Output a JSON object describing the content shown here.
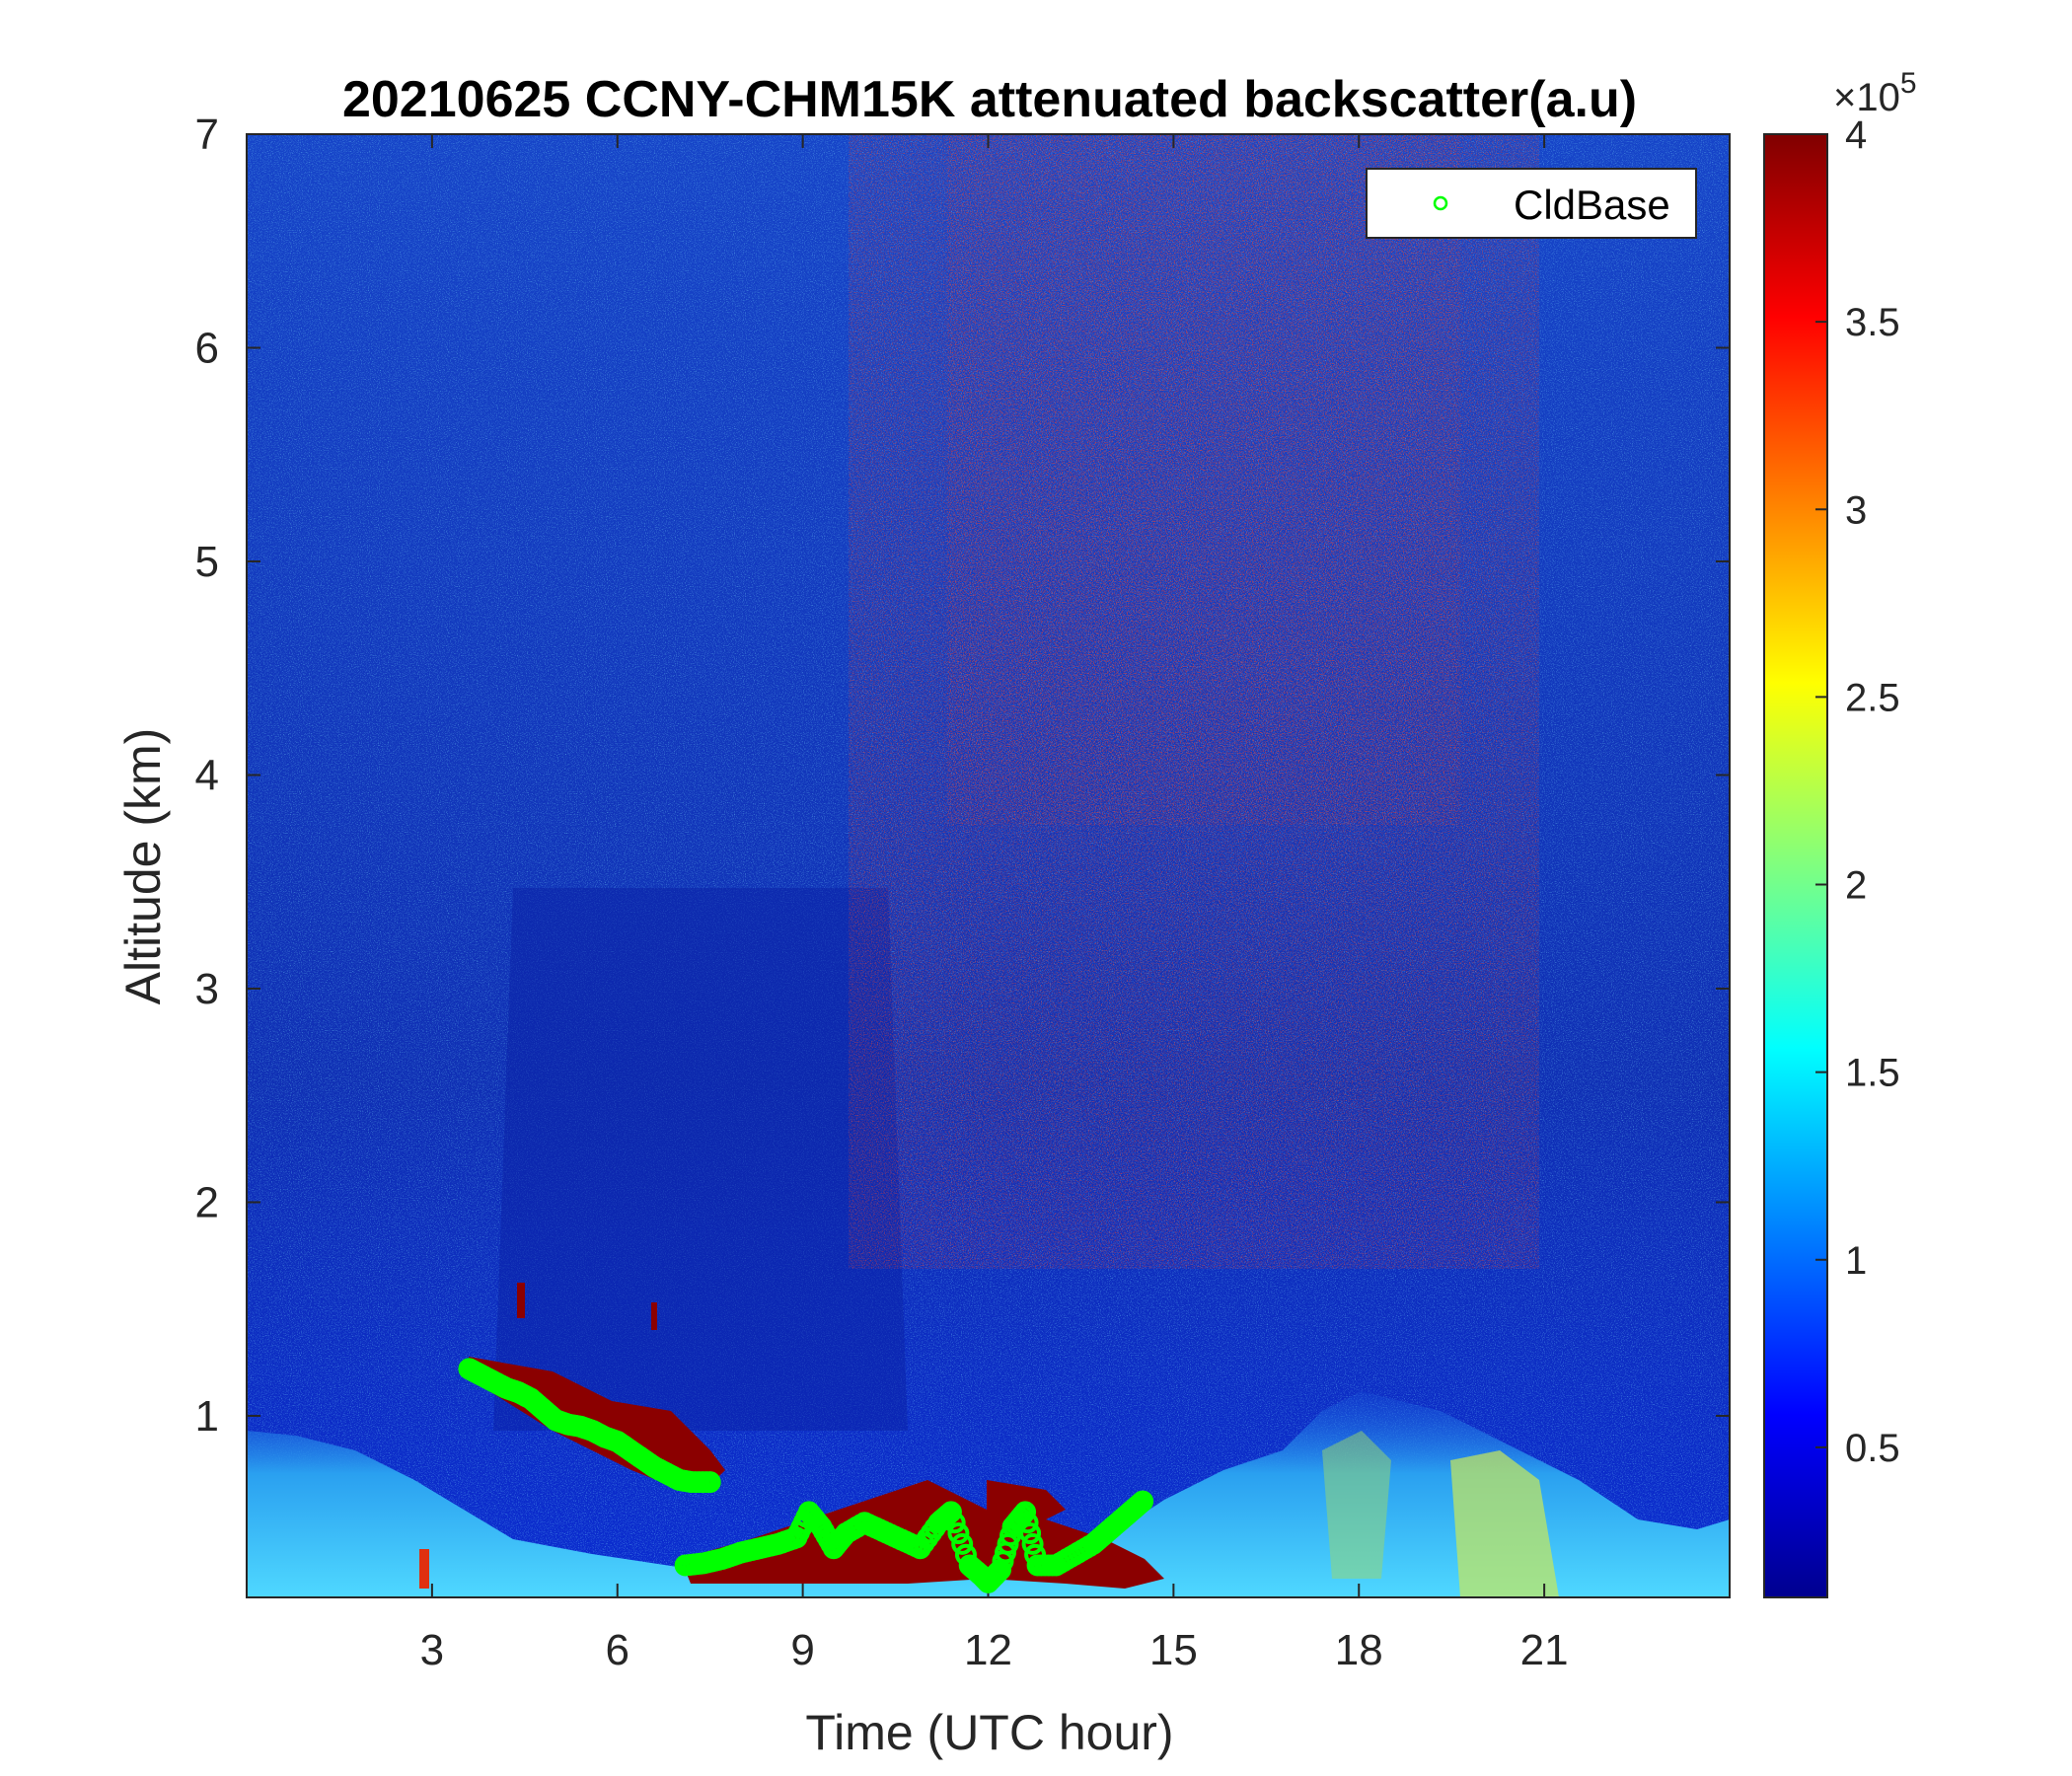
{
  "chart_data": {
    "type": "heatmap",
    "title": "20210625 CCNY-CHM15K attenuated backscatter(a.u)",
    "xlabel": "Time (UTC hour)",
    "ylabel": "Altitude (km)",
    "xlim": [
      0,
      24
    ],
    "ylim": [
      0.15,
      7
    ],
    "xticks": [
      3,
      6,
      9,
      12,
      15,
      18,
      21
    ],
    "yticks": [
      1,
      2,
      3,
      4,
      5,
      6,
      7
    ],
    "colorbar": {
      "colormap": "jet",
      "clim": [
        0.1,
        4
      ],
      "ticks": [
        0.5,
        1,
        1.5,
        2,
        2.5,
        3,
        3.5,
        4
      ],
      "multiplier_base": "×10",
      "multiplier_exponent": "5"
    },
    "legend": {
      "location": "top-right",
      "entries": [
        "CldBase"
      ]
    },
    "colors": {
      "cloud_base_marker": "#00ff00"
    },
    "cloud_base_series": {
      "name": "CldBase",
      "marker": "circle",
      "segments": [
        {
          "x": [
            3.6,
            3.8,
            4.0,
            4.2,
            4.4,
            4.6,
            4.8,
            5.0,
            5.2,
            5.4,
            5.6,
            5.8,
            6.0,
            6.2,
            6.4,
            6.6,
            6.8,
            7.0,
            7.2,
            7.5
          ],
          "y": [
            1.22,
            1.19,
            1.16,
            1.13,
            1.11,
            1.08,
            1.03,
            0.98,
            0.96,
            0.95,
            0.93,
            0.9,
            0.88,
            0.84,
            0.8,
            0.76,
            0.73,
            0.7,
            0.69,
            0.69
          ]
        },
        {
          "x": [
            7.1,
            7.4,
            7.7,
            8.0,
            8.3,
            8.6,
            8.9,
            9.1,
            9.3,
            9.5,
            9.7,
            10.0,
            10.3,
            10.6,
            10.9,
            11.2,
            11.4,
            11.7,
            11.9,
            12.0,
            12.2,
            12.4,
            12.6,
            12.8,
            13.1,
            13.4,
            13.7,
            13.9,
            14.1,
            14.3,
            14.5
          ],
          "y": [
            0.3,
            0.31,
            0.33,
            0.36,
            0.38,
            0.4,
            0.43,
            0.55,
            0.48,
            0.38,
            0.45,
            0.5,
            0.46,
            0.42,
            0.38,
            0.5,
            0.55,
            0.3,
            0.25,
            0.22,
            0.28,
            0.48,
            0.55,
            0.3,
            0.3,
            0.35,
            0.4,
            0.45,
            0.5,
            0.55,
            0.6
          ]
        }
      ]
    }
  }
}
